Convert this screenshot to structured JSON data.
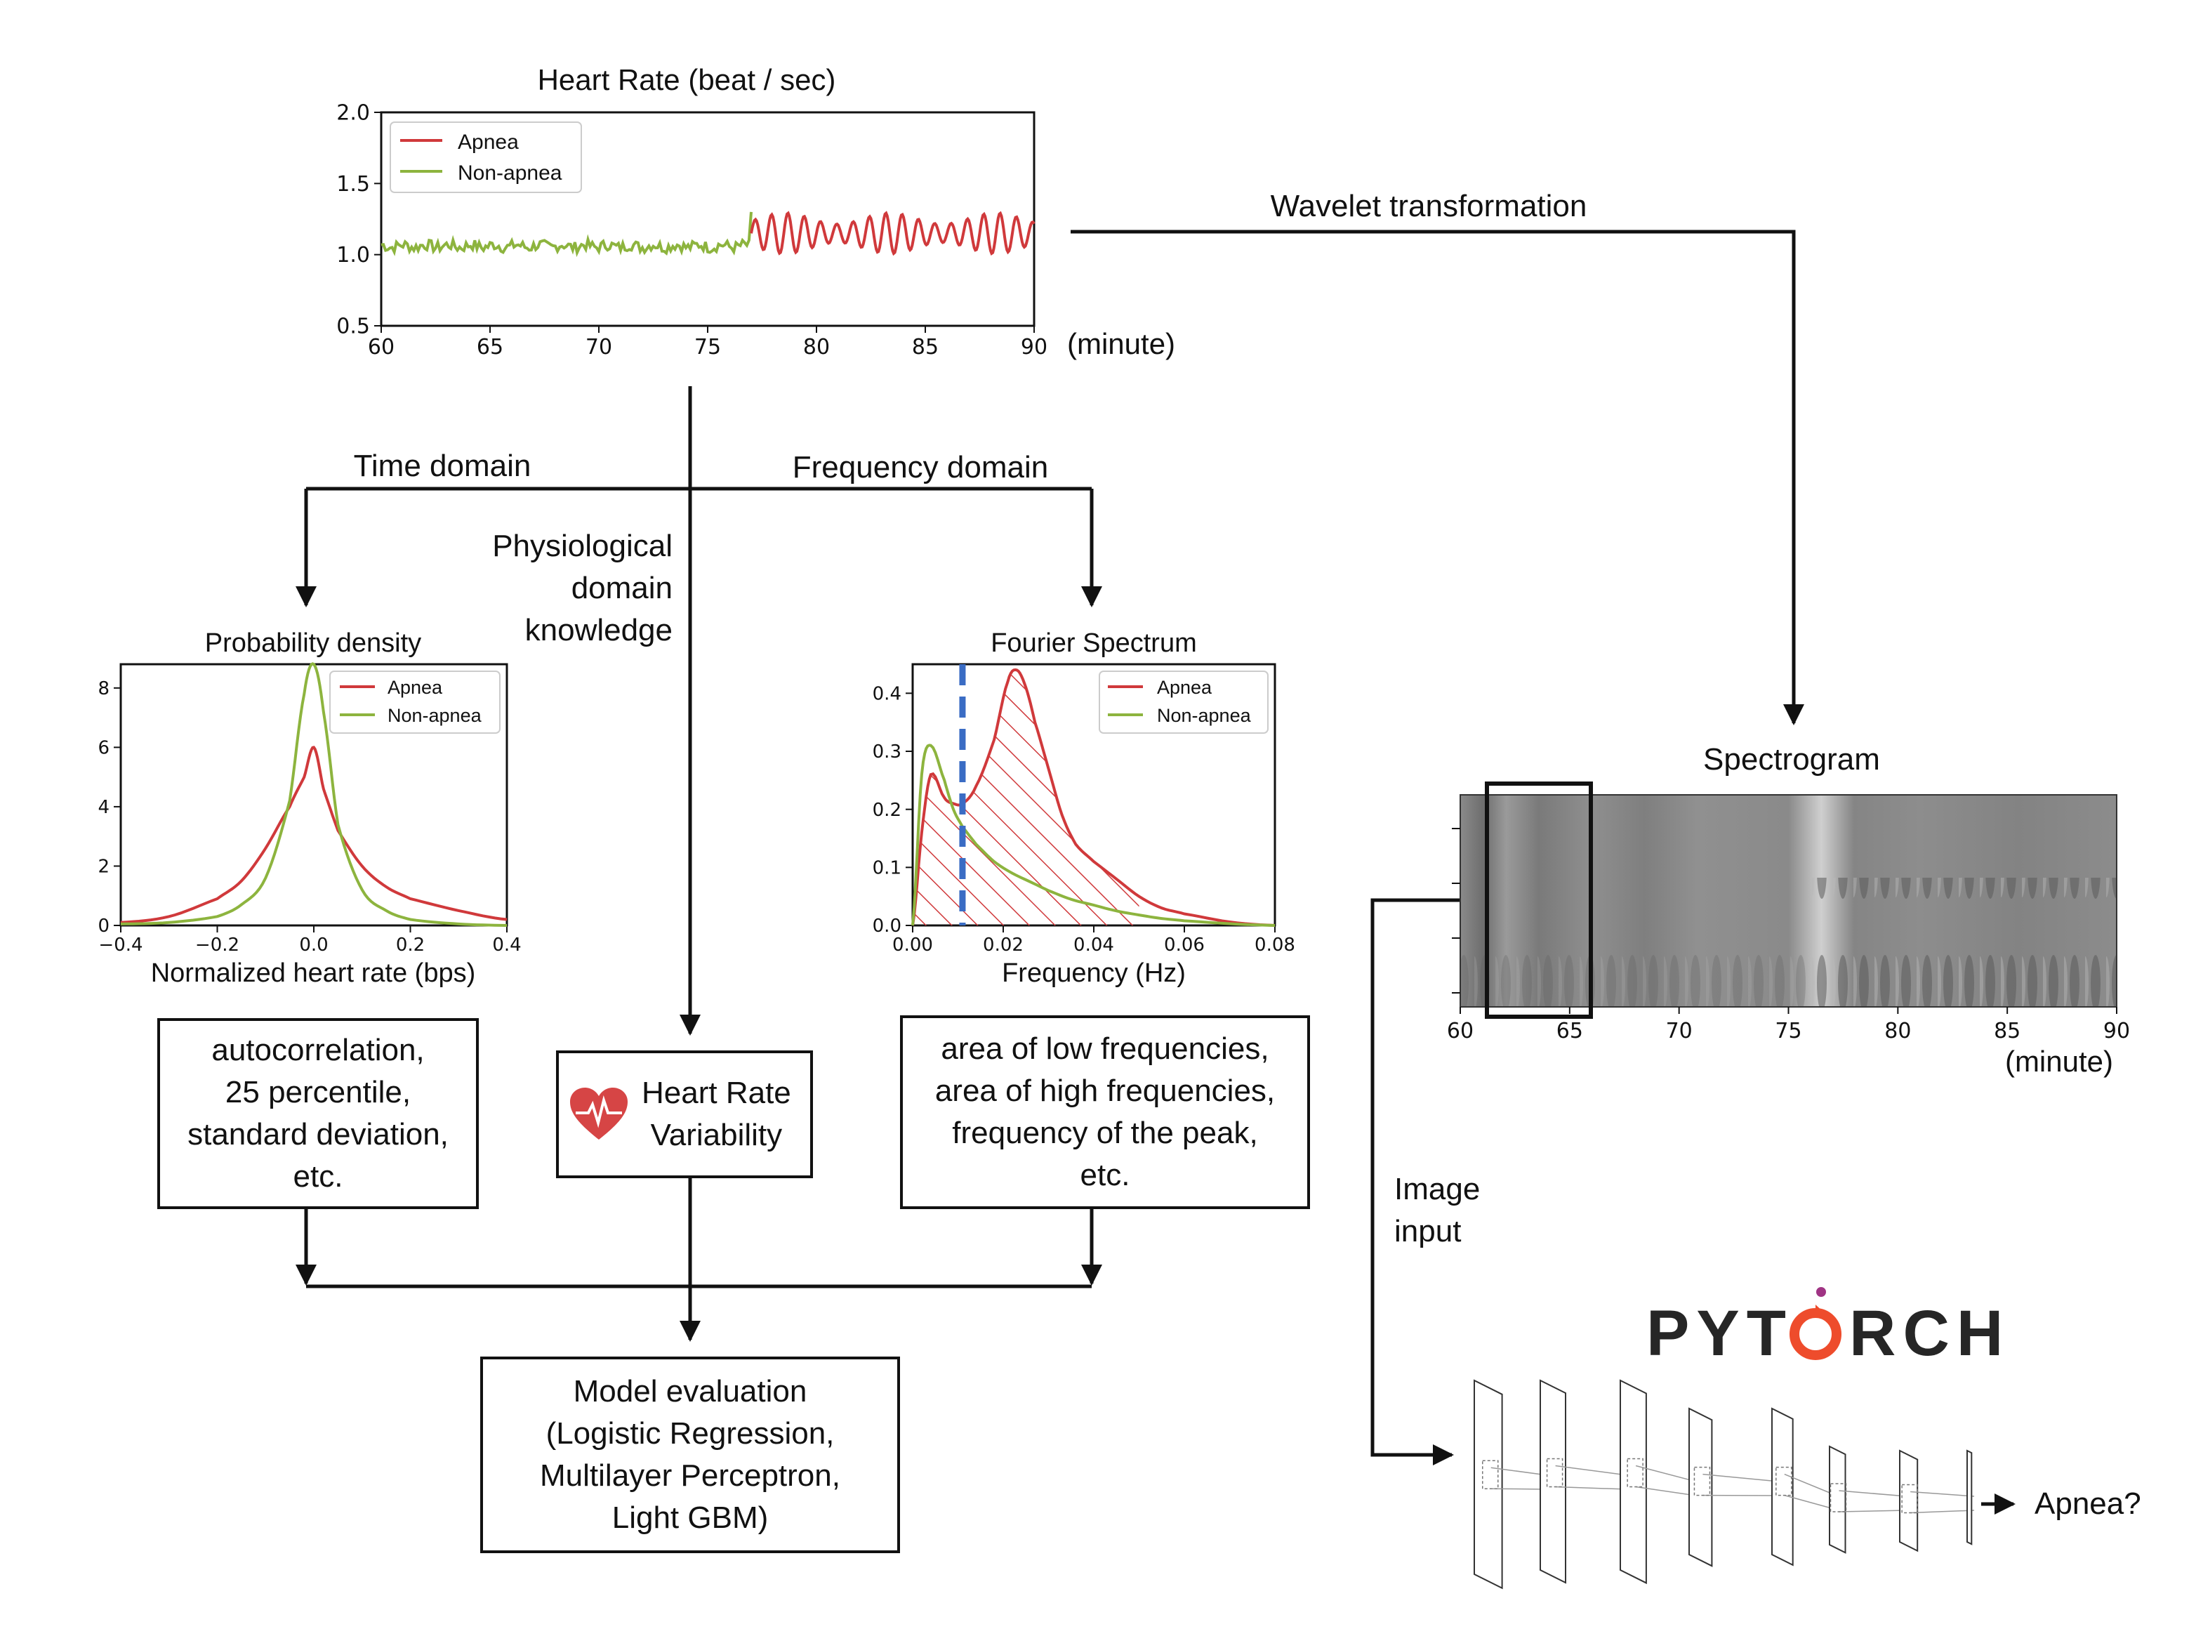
{
  "hr_chart": {
    "title": "Heart Rate (beat / sec)",
    "x_unit": "(minute)",
    "legend": [
      "Apnea",
      "Non-apnea"
    ]
  },
  "labels": {
    "wavelet": "Wavelet transformation",
    "time_domain": "Time domain",
    "frequency_domain": "Frequency domain",
    "physio_1": "Physiological",
    "physio_2": "domain",
    "physio_3": "knowledge",
    "image_input_1": "Image",
    "image_input_2": "input",
    "apnea_question": "Apnea?",
    "pytorch": "PYTORCH"
  },
  "pdf_chart": {
    "title": "Probability density",
    "xlabel": "Normalized heart rate (bps)",
    "legend": [
      "Apnea",
      "Non-apnea"
    ]
  },
  "fourier_chart": {
    "title": "Fourier Spectrum",
    "xlabel": "Frequency (Hz)",
    "legend": [
      "Apnea",
      "Non-apnea"
    ]
  },
  "spectrogram": {
    "title": "Spectrogram",
    "x_unit": "(minute)",
    "x_ticks": [
      "60",
      "65",
      "70",
      "75",
      "80",
      "85",
      "90"
    ]
  },
  "boxes": {
    "time_features": [
      "autocorrelation,",
      "25 percentile,",
      "standard deviation,",
      "etc."
    ],
    "hrv": [
      "Heart Rate",
      "Variability"
    ],
    "freq_features": [
      "area of low frequencies,",
      "area of high frequencies,",
      "frequency of the peak,",
      "etc."
    ],
    "model": [
      "Model evaluation",
      "(Logistic Regression,",
      "Multilayer Perceptron,",
      "Light GBM)"
    ]
  },
  "colors": {
    "apnea": "#d0393b",
    "non_apnea": "#8db43e",
    "threshold": "#3a6cc4",
    "pytorch_flame": "#ee4c2c",
    "pytorch_text": "#262626"
  },
  "chart_data": [
    {
      "type": "line",
      "name": "heart-rate",
      "title": "Heart Rate (beat / sec)",
      "xlabel": "(minute)",
      "ylabel": "",
      "xlim": [
        60,
        90
      ],
      "ylim": [
        0.5,
        2.0
      ],
      "xticks": [
        60,
        65,
        70,
        75,
        80,
        85,
        90
      ],
      "yticks": [
        0.5,
        1.0,
        1.5,
        2.0
      ],
      "legend_position": "top-left",
      "series": [
        {
          "name": "Non-apnea",
          "x_range": [
            60,
            77
          ],
          "baseline": 1.06,
          "oscillation": 0.04
        },
        {
          "name": "Apnea",
          "x_range": [
            77,
            90
          ],
          "baseline": 1.15,
          "oscillation": 0.13
        }
      ]
    },
    {
      "type": "line",
      "name": "probability-density",
      "title": "Probability density",
      "xlabel": "Normalized heart rate (bps)",
      "ylabel": "",
      "xlim": [
        -0.4,
        0.4
      ],
      "ylim": [
        0,
        8.8
      ],
      "xticks": [
        -0.4,
        -0.2,
        0.0,
        0.2,
        0.4
      ],
      "yticks": [
        0,
        2,
        4,
        6,
        8
      ],
      "legend_position": "top-right",
      "series": [
        {
          "name": "Apnea",
          "x": [
            -0.4,
            -0.3,
            -0.2,
            -0.15,
            -0.1,
            -0.05,
            -0.02,
            0.0,
            0.02,
            0.05,
            0.1,
            0.15,
            0.2,
            0.3,
            0.4
          ],
          "y": [
            0.1,
            0.3,
            0.9,
            1.5,
            2.6,
            4.0,
            5.0,
            6.0,
            4.6,
            3.2,
            2.0,
            1.3,
            0.9,
            0.5,
            0.2
          ]
        },
        {
          "name": "Non-apnea",
          "x": [
            -0.4,
            -0.3,
            -0.2,
            -0.15,
            -0.1,
            -0.05,
            -0.02,
            0.0,
            0.02,
            0.05,
            0.1,
            0.15,
            0.2,
            0.3,
            0.4
          ],
          "y": [
            0.05,
            0.1,
            0.3,
            0.7,
            1.6,
            4.2,
            7.8,
            8.8,
            7.2,
            3.4,
            1.2,
            0.5,
            0.2,
            0.05,
            0.0
          ]
        }
      ]
    },
    {
      "type": "area",
      "name": "fourier-spectrum",
      "title": "Fourier Spectrum",
      "xlabel": "Frequency (Hz)",
      "ylabel": "",
      "xlim": [
        0.0,
        0.08
      ],
      "ylim": [
        0.0,
        0.45
      ],
      "xticks": [
        0.0,
        0.02,
        0.04,
        0.06,
        0.08
      ],
      "yticks": [
        0.0,
        0.1,
        0.2,
        0.3,
        0.4
      ],
      "threshold_x": 0.011,
      "legend_position": "top-right",
      "series": [
        {
          "name": "Apnea",
          "x": [
            0.0,
            0.002,
            0.004,
            0.007,
            0.009,
            0.011,
            0.014,
            0.018,
            0.021,
            0.023,
            0.025,
            0.027,
            0.03,
            0.033,
            0.036,
            0.04,
            0.045,
            0.05,
            0.055,
            0.06,
            0.07,
            0.08
          ],
          "y": [
            0.0,
            0.16,
            0.26,
            0.22,
            0.21,
            0.21,
            0.24,
            0.32,
            0.42,
            0.44,
            0.41,
            0.35,
            0.27,
            0.19,
            0.14,
            0.11,
            0.08,
            0.05,
            0.03,
            0.02,
            0.006,
            0.0
          ]
        },
        {
          "name": "Non-apnea",
          "x": [
            0.0,
            0.002,
            0.004,
            0.007,
            0.009,
            0.011,
            0.014,
            0.018,
            0.022,
            0.026,
            0.03,
            0.035,
            0.04,
            0.045,
            0.05,
            0.055,
            0.06,
            0.07,
            0.08
          ],
          "y": [
            0.0,
            0.26,
            0.31,
            0.25,
            0.2,
            0.17,
            0.14,
            0.11,
            0.09,
            0.075,
            0.06,
            0.045,
            0.035,
            0.025,
            0.018,
            0.012,
            0.008,
            0.003,
            0.0
          ]
        }
      ]
    }
  ]
}
